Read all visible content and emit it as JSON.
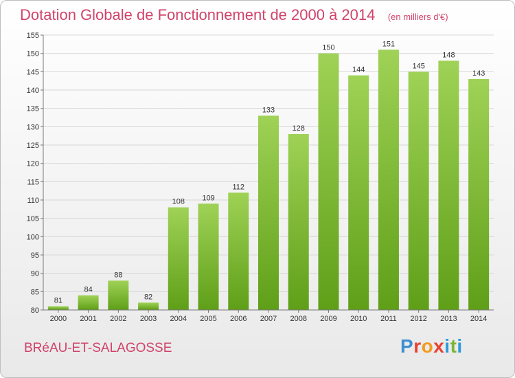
{
  "header": {
    "title": "Dotation Globale de Fonctionnement de 2000 à 2014",
    "subtitle": "(en milliers d'€)"
  },
  "footer": {
    "commune": "BRéAU-ET-SALAGOSSE",
    "logo": [
      "P",
      "r",
      "o",
      "x",
      "i",
      "t",
      "i"
    ],
    "logo_colors": [
      "#3c8fd0",
      "#e8412f",
      "#f39a1e",
      "#e8412f",
      "#2d9ad8",
      "#7ab536",
      "#2d9ad8"
    ]
  },
  "colors": {
    "bar_top": "#9fd256",
    "bar_bottom": "#5f9f18",
    "grid": "#d7d7d7",
    "axis": "#777777"
  },
  "chart_data": {
    "type": "bar",
    "title": "Dotation Globale de Fonctionnement de 2000 à 2014",
    "subtitle": "(en milliers d'€)",
    "xlabel": "",
    "ylabel": "",
    "categories": [
      "2000",
      "2001",
      "2002",
      "2003",
      "2004",
      "2005",
      "2006",
      "2007",
      "2008",
      "2009",
      "2010",
      "2011",
      "2012",
      "2013",
      "2014"
    ],
    "values": [
      81,
      84,
      88,
      82,
      108,
      109,
      112,
      133,
      128,
      150,
      144,
      151,
      145,
      148,
      143
    ],
    "ylim": [
      80,
      155
    ],
    "yticks": [
      80,
      85,
      90,
      95,
      100,
      105,
      110,
      115,
      120,
      125,
      130,
      135,
      140,
      145,
      150,
      155
    ],
    "grid": true
  }
}
